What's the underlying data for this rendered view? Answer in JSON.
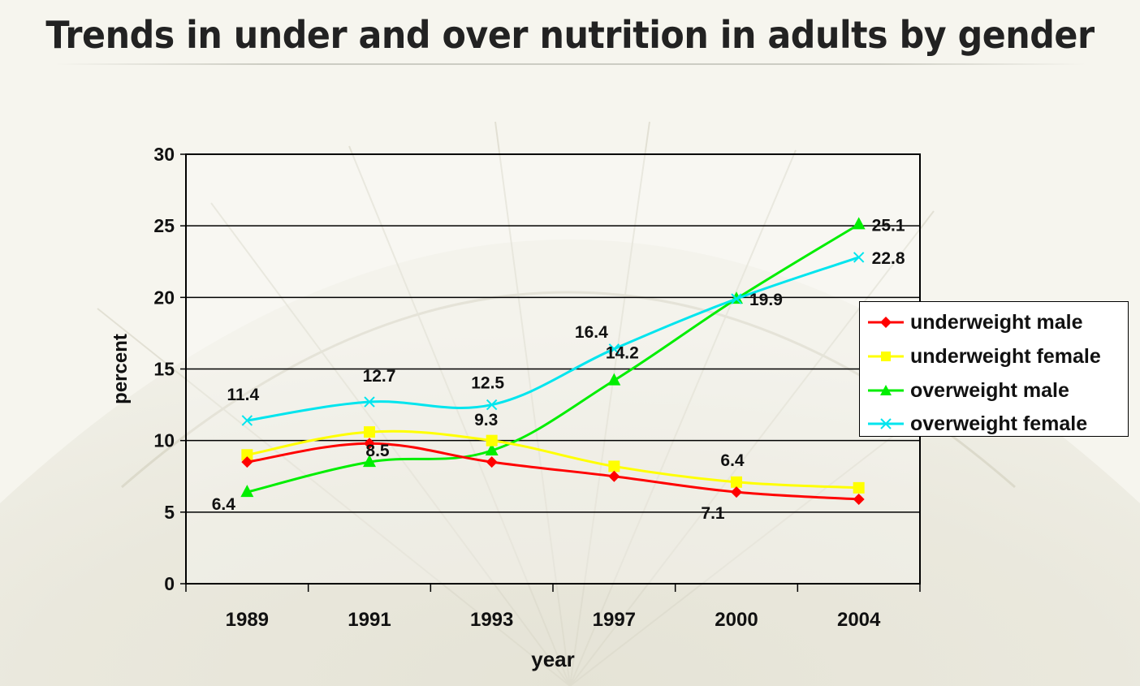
{
  "title": "Trends in under and over nutrition in adults by gender",
  "chart_data": {
    "type": "line",
    "categories": [
      "1989",
      "1991",
      "1993",
      "1997",
      "2000",
      "2004"
    ],
    "xlabel": "year",
    "ylabel": "percent",
    "ylim": [
      0,
      30
    ],
    "yticks": [
      0,
      5,
      10,
      15,
      20,
      25,
      30
    ],
    "grid": true,
    "legend_position": "right",
    "series": [
      {
        "name": "underweight male",
        "color": "#ff0000",
        "marker": "diamond",
        "values": [
          8.5,
          9.8,
          8.5,
          7.5,
          6.4,
          5.9
        ]
      },
      {
        "name": "underweight female",
        "color": "#ffff00",
        "marker": "square",
        "values": [
          9.0,
          10.6,
          10.0,
          8.2,
          7.1,
          6.7
        ]
      },
      {
        "name": "overweight male",
        "color": "#00ee00",
        "marker": "triangle",
        "values": [
          6.4,
          8.5,
          9.3,
          14.2,
          19.9,
          25.1
        ]
      },
      {
        "name": "overweight female",
        "color": "#00e5ee",
        "marker": "x",
        "values": [
          11.4,
          12.7,
          12.5,
          16.4,
          19.9,
          22.8
        ]
      }
    ],
    "annotations": [
      {
        "text": "11.4",
        "x": "1989",
        "y": 11.4
      },
      {
        "text": "12.7",
        "x": "1991",
        "y": 12.7
      },
      {
        "text": "12.5",
        "x": "1993",
        "y": 12.5
      },
      {
        "text": "16.4",
        "x": "1997",
        "y": 16.4
      },
      {
        "text": "14.2",
        "x": "1997",
        "y": 14.2
      },
      {
        "text": "19.9",
        "x": "2000",
        "y": 19.9
      },
      {
        "text": "25.1",
        "x": "2004",
        "y": 25.1
      },
      {
        "text": "22.8",
        "x": "2004",
        "y": 22.8
      },
      {
        "text": "8.5",
        "x": "1991",
        "y": 8.5
      },
      {
        "text": "9.3",
        "x": "1993",
        "y": 9.3
      },
      {
        "text": "6.4",
        "x": "1989",
        "y": 6.4
      },
      {
        "text": "6.4",
        "x": "2000",
        "y": 6.4
      },
      {
        "text": "7.1",
        "x": "2000",
        "y": 7.1
      }
    ]
  }
}
